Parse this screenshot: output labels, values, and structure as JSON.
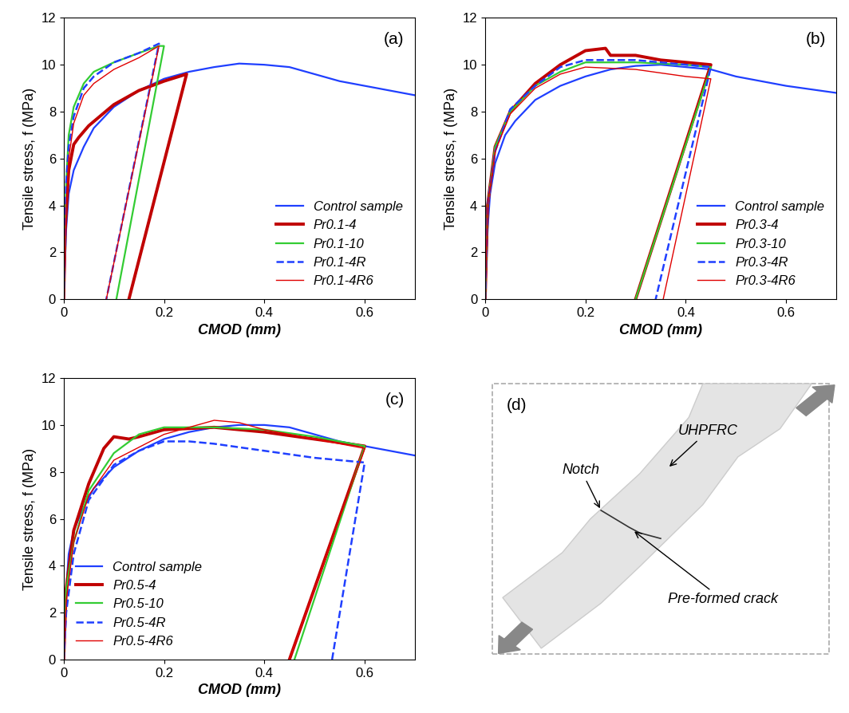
{
  "chart_data": [
    {
      "type": "line",
      "title": "(a)",
      "x_label": "CMOD (mm)",
      "y_label": "Tensile stress, f (MPa)",
      "xlim": [
        0,
        0.7
      ],
      "xticks": [
        0,
        0.2,
        0.4,
        0.6
      ],
      "ylim": [
        0,
        12
      ],
      "yticks": [
        0,
        2,
        4,
        6,
        8,
        10,
        12
      ],
      "grid": false,
      "legend": "lower right",
      "series": [
        {
          "name": "Control sample",
          "color": "#1f3fff",
          "line_style": "solid",
          "x": [
            0,
            0.005,
            0.01,
            0.02,
            0.04,
            0.06,
            0.1,
            0.15,
            0.2,
            0.25,
            0.3,
            0.35,
            0.4,
            0.45,
            0.5,
            0.55,
            0.6,
            0.65,
            0.7
          ],
          "values": [
            0,
            3,
            4.5,
            5.5,
            6.5,
            7.3,
            8.2,
            8.9,
            9.4,
            9.7,
            9.9,
            10.05,
            10.0,
            9.9,
            9.6,
            9.3,
            9.1,
            8.9,
            8.7
          ]
        },
        {
          "name": "Pr0.1-4",
          "color": "#c00000",
          "line_style": "solid",
          "x": [
            0,
            0.003,
            0.01,
            0.02,
            0.03,
            0.05,
            0.1,
            0.15,
            0.2,
            0.245,
            0.13
          ],
          "values": [
            0,
            3,
            5.5,
            6.6,
            6.9,
            7.4,
            8.3,
            8.9,
            9.3,
            9.6,
            0
          ]
        },
        {
          "name": "Pr0.1-10",
          "color": "#33cc33",
          "line_style": "solid",
          "x": [
            0,
            0.005,
            0.01,
            0.02,
            0.04,
            0.06,
            0.1,
            0.15,
            0.19,
            0.2,
            0.105
          ],
          "values": [
            0,
            5,
            7,
            8.2,
            9.2,
            9.7,
            10.1,
            10.5,
            10.8,
            10.8,
            0
          ]
        },
        {
          "name": "Pr0.1-4R",
          "color": "#1f3fff",
          "line_style": "dashed",
          "x": [
            0,
            0.005,
            0.01,
            0.02,
            0.04,
            0.06,
            0.1,
            0.15,
            0.19,
            0.085
          ],
          "values": [
            0,
            5,
            6.5,
            7.8,
            9,
            9.5,
            10.1,
            10.5,
            10.9,
            0
          ]
        },
        {
          "name": "Pr0.1-4R6",
          "color": "#e00000",
          "line_style": "solid",
          "x": [
            0,
            0.005,
            0.01,
            0.02,
            0.04,
            0.06,
            0.1,
            0.15,
            0.19,
            0.085
          ],
          "values": [
            0,
            4,
            6,
            7.5,
            8.7,
            9.2,
            9.8,
            10.3,
            10.8,
            0
          ]
        }
      ]
    },
    {
      "type": "line",
      "title": "(b)",
      "x_label": "CMOD (mm)",
      "y_label": "Tensile stress, f (MPa)",
      "xlim": [
        0,
        0.7
      ],
      "xticks": [
        0,
        0.2,
        0.4,
        0.6
      ],
      "ylim": [
        0,
        12
      ],
      "yticks": [
        0,
        2,
        4,
        6,
        8,
        10,
        12
      ],
      "grid": false,
      "legend": "lower right",
      "series": [
        {
          "name": "Control sample",
          "color": "#1f3fff",
          "line_style": "solid",
          "x": [
            0,
            0.005,
            0.01,
            0.02,
            0.04,
            0.06,
            0.1,
            0.15,
            0.2,
            0.25,
            0.3,
            0.35,
            0.4,
            0.45,
            0.5,
            0.6,
            0.7
          ],
          "values": [
            0,
            3,
            4.5,
            5.8,
            7,
            7.6,
            8.5,
            9.1,
            9.5,
            9.8,
            9.95,
            10.0,
            9.9,
            9.8,
            9.5,
            9.1,
            8.8
          ]
        },
        {
          "name": "Pr0.3-4",
          "color": "#c00000",
          "line_style": "solid",
          "x": [
            0,
            0.005,
            0.02,
            0.05,
            0.1,
            0.15,
            0.2,
            0.24,
            0.25,
            0.3,
            0.35,
            0.4,
            0.45,
            0.3
          ],
          "values": [
            0,
            4,
            6.5,
            8,
            9.2,
            10,
            10.6,
            10.7,
            10.4,
            10.4,
            10.2,
            10.1,
            10.0,
            0
          ]
        },
        {
          "name": "Pr0.3-10",
          "color": "#33cc33",
          "line_style": "solid",
          "x": [
            0,
            0.005,
            0.02,
            0.05,
            0.1,
            0.15,
            0.2,
            0.3,
            0.4,
            0.45,
            0.3
          ],
          "values": [
            0,
            4,
            6.5,
            8,
            9.1,
            9.7,
            10.1,
            10.1,
            10.0,
            9.9,
            0
          ]
        },
        {
          "name": "Pr0.3-4R",
          "color": "#1f3fff",
          "line_style": "dashed",
          "x": [
            0,
            0.005,
            0.02,
            0.05,
            0.1,
            0.15,
            0.2,
            0.3,
            0.4,
            0.45,
            0.34
          ],
          "values": [
            0,
            4,
            6.3,
            8.1,
            9.1,
            9.9,
            10.2,
            10.2,
            10.0,
            9.9,
            0
          ]
        },
        {
          "name": "Pr0.3-4R6",
          "color": "#e00000",
          "line_style": "solid",
          "x": [
            0,
            0.005,
            0.02,
            0.05,
            0.1,
            0.15,
            0.2,
            0.3,
            0.4,
            0.45,
            0.355
          ],
          "values": [
            0,
            4,
            6.3,
            7.9,
            9.0,
            9.6,
            9.9,
            9.8,
            9.5,
            9.4,
            0
          ]
        }
      ]
    },
    {
      "type": "line",
      "title": "(c)",
      "x_label": "CMOD (mm)",
      "y_label": "Tensile stress, f (MPa)",
      "xlim": [
        0,
        0.7
      ],
      "xticks": [
        0,
        0.2,
        0.4,
        0.6
      ],
      "ylim": [
        0,
        12
      ],
      "yticks": [
        0,
        2,
        4,
        6,
        8,
        10,
        12
      ],
      "grid": false,
      "legend": "lower left",
      "series": [
        {
          "name": "Control sample",
          "color": "#1f3fff",
          "line_style": "solid",
          "x": [
            0,
            0.005,
            0.01,
            0.02,
            0.04,
            0.06,
            0.1,
            0.15,
            0.2,
            0.25,
            0.3,
            0.35,
            0.4,
            0.45,
            0.5,
            0.55,
            0.6,
            0.65,
            0.7
          ],
          "values": [
            0,
            3,
            4.5,
            5.5,
            6.5,
            7.3,
            8.2,
            8.9,
            9.4,
            9.7,
            9.9,
            10.0,
            10.0,
            9.9,
            9.6,
            9.3,
            9.1,
            8.9,
            8.7
          ]
        },
        {
          "name": "Pr0.5-4",
          "color": "#c00000",
          "line_style": "solid",
          "x": [
            0,
            0.005,
            0.02,
            0.05,
            0.08,
            0.1,
            0.13,
            0.15,
            0.2,
            0.3,
            0.4,
            0.5,
            0.6,
            0.45
          ],
          "values": [
            0,
            3,
            5.5,
            7.5,
            9.0,
            9.5,
            9.4,
            9.5,
            9.8,
            9.9,
            9.7,
            9.4,
            9.1,
            0
          ]
        },
        {
          "name": "Pr0.5-10",
          "color": "#33cc33",
          "line_style": "solid",
          "x": [
            0,
            0.005,
            0.02,
            0.05,
            0.1,
            0.15,
            0.2,
            0.3,
            0.4,
            0.5,
            0.6,
            0.46
          ],
          "values": [
            0,
            3,
            5,
            7.2,
            8.8,
            9.6,
            9.9,
            9.9,
            9.8,
            9.5,
            9.1,
            0
          ]
        },
        {
          "name": "Pr0.5-4R",
          "color": "#1f3fff",
          "line_style": "dashed",
          "x": [
            0,
            0.005,
            0.02,
            0.05,
            0.1,
            0.15,
            0.2,
            0.25,
            0.3,
            0.4,
            0.5,
            0.6,
            0.535
          ],
          "values": [
            0,
            2,
            4.5,
            6.8,
            8.3,
            8.9,
            9.3,
            9.3,
            9.2,
            8.9,
            8.6,
            8.4,
            0
          ]
        },
        {
          "name": "Pr0.5-4R6",
          "color": "#e00000",
          "line_style": "solid",
          "x": [
            0,
            0.005,
            0.02,
            0.05,
            0.1,
            0.2,
            0.3,
            0.35,
            0.4,
            0.5,
            0.6,
            0.45
          ],
          "values": [
            0,
            2.5,
            5,
            7,
            8.5,
            9.6,
            10.2,
            10.1,
            9.8,
            9.4,
            9.0,
            0
          ]
        }
      ]
    }
  ],
  "panel_d": {
    "title": "(d)",
    "labels": [
      "UHPFRC",
      "Notch",
      "Pre-formed crack"
    ]
  }
}
